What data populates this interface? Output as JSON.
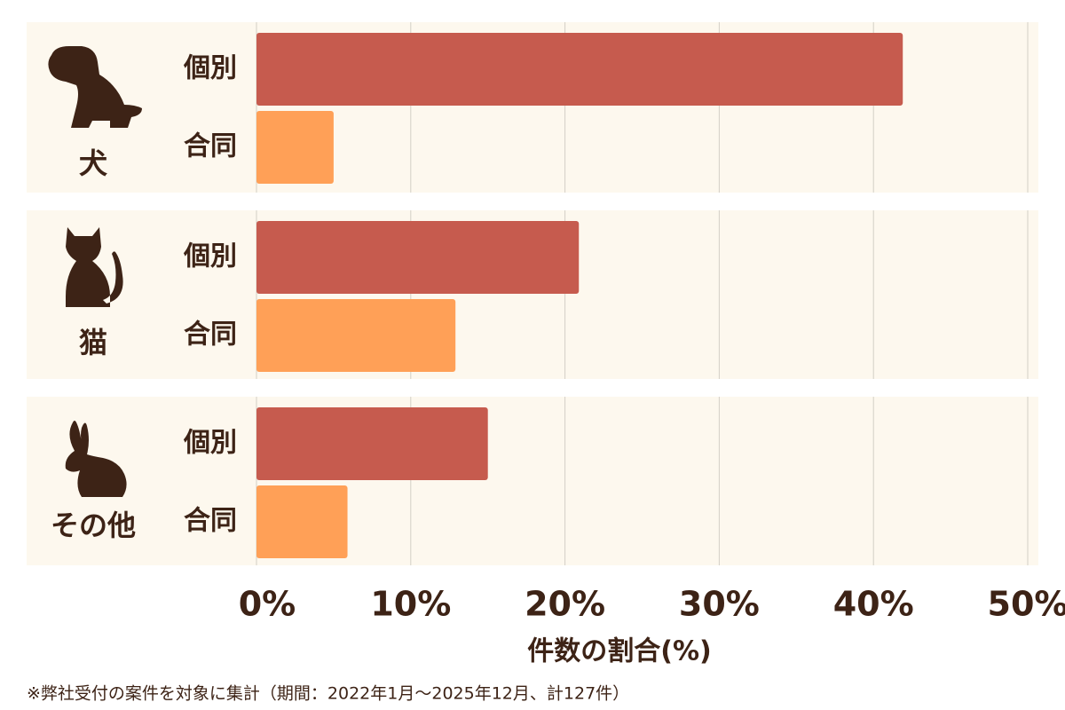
{
  "chart_data": {
    "type": "bar",
    "orientation": "horizontal",
    "categories": [
      "犬",
      "猫",
      "その他"
    ],
    "series": [
      {
        "name": "個別",
        "color": "#c65b4e",
        "values": [
          41.9,
          20.9,
          15.0
        ]
      },
      {
        "name": "合同",
        "color": "#ffa057",
        "values": [
          5.0,
          12.9,
          5.9
        ]
      }
    ],
    "xlim": [
      0,
      50
    ],
    "xticks": [
      {
        "value": 0,
        "label": "0%"
      },
      {
        "value": 10,
        "label": "10%"
      },
      {
        "value": 20,
        "label": "20%"
      },
      {
        "value": 30,
        "label": "30%"
      },
      {
        "value": 40,
        "label": "40%"
      },
      {
        "value": 50,
        "label": "50%"
      }
    ],
    "grid": true,
    "xlabel": "件数の割合(%)",
    "footnote": "※弊社受付の案件を対象に集計（期間：2022年1月～2025年12月、計127件）"
  }
}
